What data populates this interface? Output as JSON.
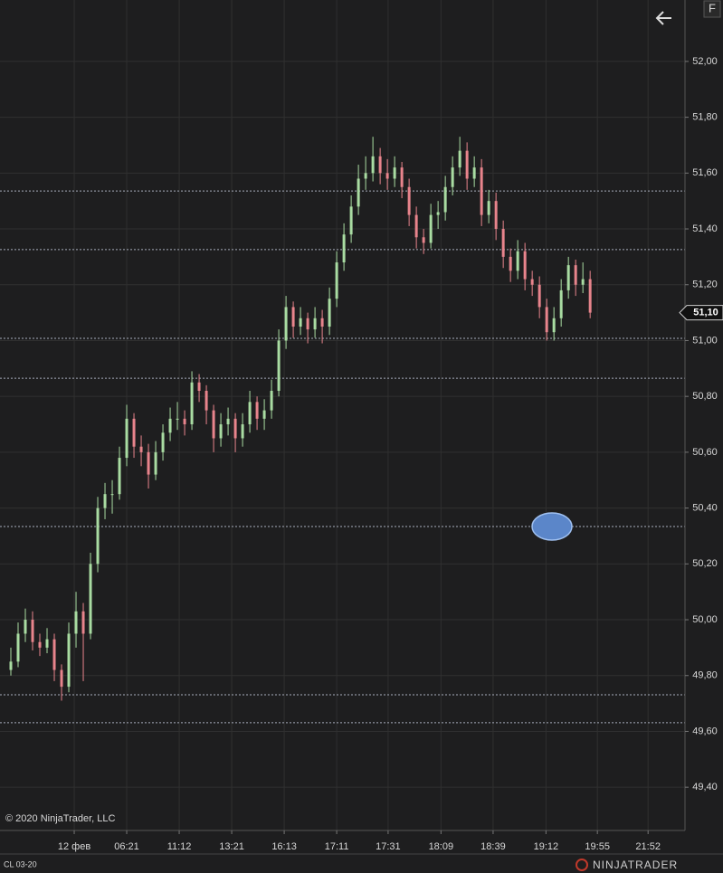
{
  "chart_data": {
    "type": "candlestick",
    "instrument": "CL 03-20",
    "copyright": "© 2020 NinjaTrader, LLC",
    "brand": "NINJATRADER",
    "button": "F",
    "up_color": "#a9dca2",
    "down_color": "#e8848c",
    "open": [
      49.82,
      49.85,
      49.95,
      50.0,
      49.92,
      49.9,
      49.93,
      49.82,
      49.76,
      49.95,
      50.03,
      49.95,
      50.2,
      50.4,
      50.45,
      50.45,
      50.58,
      50.72,
      50.62,
      50.6,
      50.52,
      50.6,
      50.67,
      50.72,
      50.72,
      50.7,
      50.85,
      50.82,
      50.75,
      50.65,
      50.7,
      50.72,
      50.65,
      50.7,
      50.78,
      50.72,
      50.75,
      50.82,
      51.0,
      51.12,
      51.05,
      51.08,
      51.04,
      51.08,
      51.05,
      51.15,
      51.28,
      51.38,
      51.48,
      51.58,
      51.6,
      51.66,
      51.6,
      51.58,
      51.62,
      51.55,
      51.45,
      51.37,
      51.35,
      51.45,
      51.46,
      51.55,
      51.62,
      51.68,
      51.58,
      51.62,
      51.45,
      51.5,
      51.4,
      51.3,
      51.25,
      51.32,
      51.22,
      51.2,
      51.12,
      51.03,
      51.08,
      51.18,
      51.27,
      51.2,
      51.22
    ],
    "high": [
      49.9,
      49.99,
      50.04,
      50.03,
      49.95,
      49.97,
      49.95,
      49.84,
      49.99,
      50.1,
      50.06,
      50.24,
      50.44,
      50.49,
      50.5,
      50.62,
      50.77,
      50.74,
      50.66,
      50.63,
      50.64,
      50.7,
      50.76,
      50.78,
      50.75,
      50.89,
      50.88,
      50.84,
      50.77,
      50.74,
      50.76,
      50.74,
      50.74,
      50.82,
      50.8,
      50.79,
      50.86,
      51.04,
      51.16,
      51.14,
      51.12,
      51.1,
      51.12,
      51.11,
      51.19,
      51.32,
      51.42,
      51.52,
      51.63,
      51.66,
      51.73,
      51.69,
      51.65,
      51.66,
      51.64,
      51.58,
      51.48,
      51.4,
      51.49,
      51.5,
      51.59,
      51.66,
      51.73,
      51.71,
      51.66,
      51.65,
      51.54,
      51.53,
      51.43,
      51.33,
      51.36,
      51.35,
      51.25,
      51.23,
      51.15,
      51.12,
      51.22,
      51.3,
      51.29,
      51.28,
      51.25
    ],
    "low": [
      49.8,
      49.83,
      49.92,
      49.89,
      49.87,
      49.88,
      49.78,
      49.71,
      49.74,
      49.9,
      49.78,
      49.93,
      50.17,
      50.36,
      50.38,
      50.43,
      50.55,
      50.58,
      50.55,
      50.47,
      50.5,
      50.57,
      50.64,
      50.68,
      50.66,
      50.68,
      50.78,
      50.7,
      50.6,
      50.62,
      50.66,
      50.6,
      50.62,
      50.67,
      50.68,
      50.68,
      50.72,
      50.8,
      50.97,
      51.01,
      51.02,
      50.99,
      51.01,
      50.99,
      51.02,
      51.12,
      51.25,
      51.35,
      51.45,
      51.54,
      51.57,
      51.56,
      51.54,
      51.55,
      51.51,
      51.41,
      51.33,
      51.31,
      51.33,
      51.4,
      51.43,
      51.52,
      51.59,
      51.54,
      51.55,
      51.41,
      51.42,
      51.36,
      51.26,
      51.21,
      51.22,
      51.18,
      51.16,
      51.08,
      51.0,
      51.0,
      51.05,
      51.15,
      51.16,
      51.17,
      51.08
    ],
    "close": [
      49.85,
      49.95,
      50.0,
      49.92,
      49.9,
      49.93,
      49.82,
      49.76,
      49.95,
      50.03,
      49.95,
      50.2,
      50.4,
      50.45,
      50.45,
      50.58,
      50.72,
      50.62,
      50.6,
      50.52,
      50.6,
      50.67,
      50.72,
      50.72,
      50.7,
      50.85,
      50.82,
      50.75,
      50.65,
      50.7,
      50.72,
      50.65,
      50.7,
      50.78,
      50.72,
      50.75,
      50.82,
      51.0,
      51.12,
      51.05,
      51.08,
      51.04,
      51.08,
      51.05,
      51.15,
      51.28,
      51.38,
      51.48,
      51.58,
      51.6,
      51.66,
      51.6,
      51.58,
      51.62,
      51.55,
      51.45,
      51.37,
      51.35,
      51.45,
      51.46,
      51.55,
      51.62,
      51.68,
      51.58,
      51.62,
      51.45,
      51.5,
      51.4,
      51.3,
      51.25,
      51.32,
      51.22,
      51.2,
      51.12,
      51.03,
      51.08,
      51.18,
      51.27,
      51.2,
      51.22,
      51.1
    ],
    "last_price": {
      "value": 51.1,
      "label": "51,10"
    },
    "horizontal_lines": [
      51.536,
      51.326,
      51.008,
      50.865,
      50.334,
      49.731,
      49.631
    ],
    "xlim": [
      -1.5,
      93.1
    ],
    "xticks": [
      {
        "value": 8.75,
        "label": "12 фев"
      },
      {
        "value": 16,
        "label": "06:21"
      },
      {
        "value": 23.25,
        "label": "11:12"
      },
      {
        "value": 30.5,
        "label": "13:21"
      },
      {
        "value": 37.75,
        "label": "16:13"
      },
      {
        "value": 45,
        "label": "17:11"
      },
      {
        "value": 52.1,
        "label": "17:31"
      },
      {
        "value": 59.4,
        "label": "18:09"
      },
      {
        "value": 66.6,
        "label": "18:39"
      },
      {
        "value": 73.9,
        "label": "19:12"
      },
      {
        "value": 81,
        "label": "19:55"
      },
      {
        "value": 88,
        "label": "21:52"
      }
    ],
    "ylim": [
      49.245,
      52.22
    ],
    "yticks": [
      {
        "value": 49.4,
        "label": "49,40"
      },
      {
        "value": 49.6,
        "label": "49,60"
      },
      {
        "value": 49.8,
        "label": "49,80"
      },
      {
        "value": 50.0,
        "label": "50,00"
      },
      {
        "value": 50.2,
        "label": "50,20"
      },
      {
        "value": 50.4,
        "label": "50,40"
      },
      {
        "value": 50.6,
        "label": "50,60"
      },
      {
        "value": 50.8,
        "label": "50,80"
      },
      {
        "value": 51.0,
        "label": "51,00"
      },
      {
        "value": 51.2,
        "label": "51,20"
      },
      {
        "value": 51.4,
        "label": "51,40"
      },
      {
        "value": 51.6,
        "label": "51,60"
      },
      {
        "value": 51.8,
        "label": "51,80"
      },
      {
        "value": 52.0,
        "label": "52,00"
      }
    ],
    "grid": true
  }
}
